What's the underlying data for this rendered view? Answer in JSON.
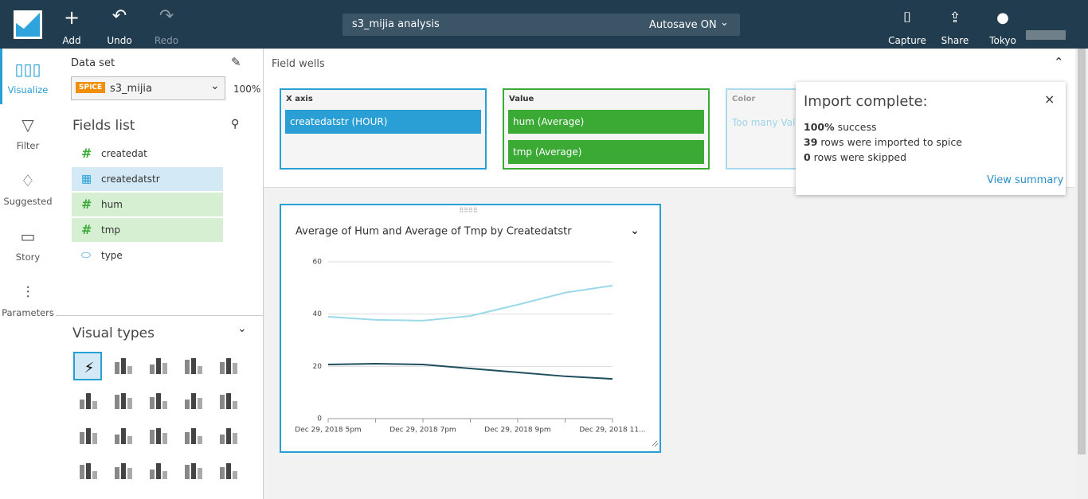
{
  "header": {
    "add": "Add",
    "undo": "Undo",
    "redo": "Redo",
    "analysis_name": "s3_mijia analysis",
    "autosave": "Autosave ON",
    "capture": "Capture",
    "share": "Share",
    "region": "Tokyo"
  },
  "sidebar": [
    "Visualize",
    "Filter",
    "Suggested",
    "Story",
    "Parameters"
  ],
  "dataset": {
    "label": "Data set",
    "badge": "SPICE",
    "name": "s3_mijia",
    "percent": "100%"
  },
  "fields": {
    "title": "Fields list",
    "items": [
      "createdat",
      "createdatstr",
      "hum",
      "tmp",
      "type"
    ]
  },
  "visual_types": {
    "title": "Visual types"
  },
  "field_wells": {
    "title": "Field wells",
    "x_axis": {
      "label": "X axis",
      "field": "createdatstr (HOUR)"
    },
    "value": {
      "label": "Value",
      "fields": [
        "hum (Average)",
        "tmp (Average)"
      ]
    },
    "color": {
      "label": "Color",
      "placeholder": "Too many Value"
    }
  },
  "notification": {
    "title": "Import complete:",
    "lines": [
      {
        "strong": "100%",
        "text": " success"
      },
      {
        "strong": "39",
        "text": " rows were imported to spice"
      },
      {
        "strong": "0",
        "text": " rows were skipped"
      }
    ],
    "link": "View summary"
  },
  "chart_data": {
    "type": "line",
    "title": "Average of Hum and Average of Tmp by Createdatstr",
    "categories": [
      "Dec 29, 2018 5pm",
      null,
      "Dec 29, 2018 7pm",
      null,
      "Dec 29, 2018 9pm",
      null,
      "Dec 29, 2018 11..."
    ],
    "series": [
      {
        "color": "#9ad9ea",
        "values": [
          39.0,
          37.8,
          37.5,
          39.3,
          43.6,
          48.2,
          50.9
        ]
      },
      {
        "color": "#1f4f5e",
        "values": [
          20.7,
          21.0,
          20.7,
          19.2,
          17.7,
          16.2,
          15.2
        ]
      }
    ],
    "ylim": [
      0,
      60
    ],
    "yticks": [
      0,
      20,
      40,
      60
    ],
    "grid": true
  }
}
